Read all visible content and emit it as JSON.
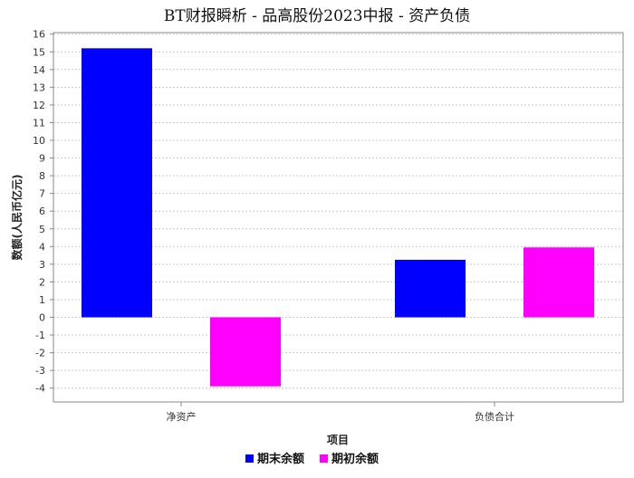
{
  "chart_data": {
    "type": "bar",
    "title": "BT财报瞬析 - 品高股份2023中报 - 资产负债",
    "xlabel": "项目",
    "ylabel": "数额(人民币亿元)",
    "categories": [
      "净资产",
      "负债合计"
    ],
    "series": [
      {
        "name": "期末余额",
        "values": [
          15.2,
          3.25
        ],
        "color": "#0000ff"
      },
      {
        "name": "期初余额",
        "values": [
          -3.9,
          3.95
        ],
        "color": "#ff00ff"
      }
    ],
    "ylim": [
      -5,
      16.5
    ],
    "yticks": [
      "16",
      "15",
      "14",
      "13",
      "12",
      "11",
      "10",
      "9",
      "8",
      "7",
      "6",
      "5",
      "4",
      "3",
      "2",
      "1",
      "0",
      "-1",
      "-2",
      "-3",
      "-4"
    ],
    "grid": true,
    "legend": "bottom"
  }
}
